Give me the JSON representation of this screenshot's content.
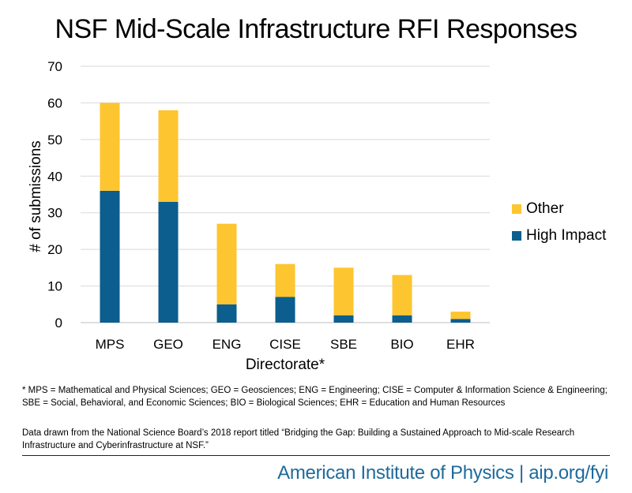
{
  "title": "NSF Mid-Scale Infrastructure RFI Responses",
  "legend": {
    "other": "Other",
    "high_impact": "High Impact"
  },
  "footnote": "* MPS = Mathematical and Physical Sciences; GEO = Geosciences; ENG = Engineering; CISE = Computer & Information Science & Engineering; SBE = Social, Behavioral, and Economic Sciences; BIO = Biological Sciences; EHR = Education and Human Resources",
  "source": "Data drawn from the National Science Board’s 2018 report titled “Bridging the Gap: Building a Sustained Approach to Mid-scale Research Infrastructure and Cyberinfrastructure at NSF.”",
  "brand": "American Institute of Physics | aip.org/fyi",
  "colors": {
    "other": "#fdc52f",
    "high_impact": "#0b5e8e",
    "grid": "#d9d9d9"
  },
  "chart_data": {
    "type": "bar",
    "stacked": true,
    "title": "NSF Mid-Scale Infrastructure RFI Responses",
    "xlabel": "Directorate*",
    "ylabel": "# of submissions",
    "categories": [
      "MPS",
      "GEO",
      "ENG",
      "CISE",
      "SBE",
      "BIO",
      "EHR"
    ],
    "series": [
      {
        "name": "High Impact",
        "values": [
          36,
          33,
          5,
          7,
          2,
          2,
          1
        ]
      },
      {
        "name": "Other",
        "values": [
          24,
          25,
          22,
          9,
          13,
          11,
          2
        ]
      }
    ],
    "ylim": [
      0,
      70
    ],
    "yticks": [
      0,
      10,
      20,
      30,
      40,
      50,
      60,
      70
    ],
    "grid": true,
    "legend_position": "right"
  }
}
